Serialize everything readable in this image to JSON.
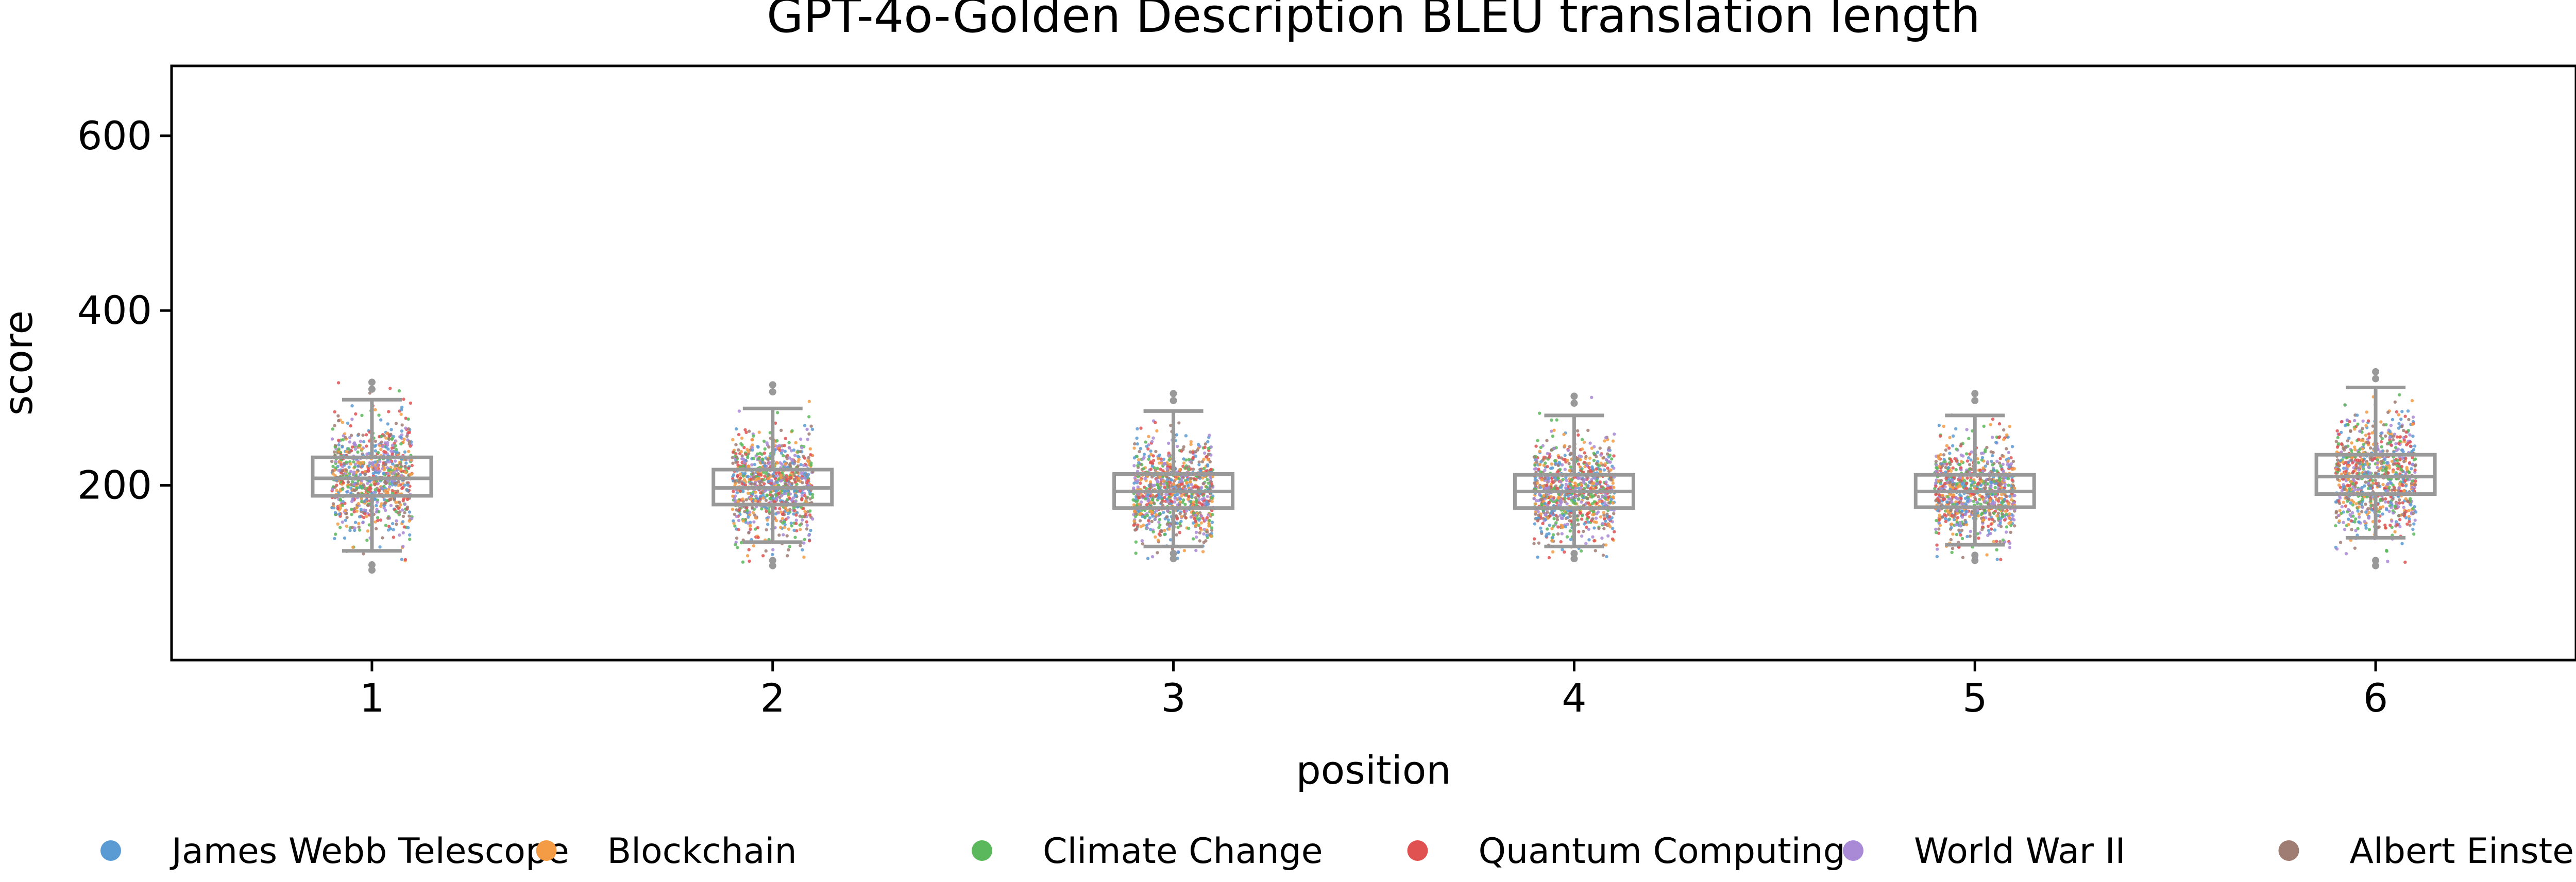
{
  "chart_data": {
    "type": "box+strip",
    "title": "GPT-4o-Golden Description BLEU translation length",
    "xlabel": "position",
    "ylabel": "score",
    "categories": [
      "1",
      "2",
      "3",
      "4",
      "5",
      "6"
    ],
    "ylim": [
      0,
      680
    ],
    "yticks": [
      200,
      400,
      600
    ],
    "grid": false,
    "legend_placement": "bottom",
    "box_color": "#999999",
    "boxes": [
      {
        "category": "1",
        "whisker_low": 125,
        "q1": 188,
        "median": 208,
        "q3": 232,
        "whisker_high": 298,
        "min": 103,
        "max": 318
      },
      {
        "category": "2",
        "whisker_low": 135,
        "q1": 178,
        "median": 197,
        "q3": 218,
        "whisker_high": 288,
        "min": 108,
        "max": 315
      },
      {
        "category": "3",
        "whisker_low": 130,
        "q1": 174,
        "median": 193,
        "q3": 213,
        "whisker_high": 285,
        "min": 116,
        "max": 305
      },
      {
        "category": "4",
        "whisker_low": 130,
        "q1": 174,
        "median": 193,
        "q3": 212,
        "whisker_high": 280,
        "min": 116,
        "max": 302
      },
      {
        "category": "5",
        "whisker_low": 132,
        "q1": 175,
        "median": 193,
        "q3": 212,
        "whisker_high": 280,
        "min": 114,
        "max": 305
      },
      {
        "category": "6",
        "whisker_low": 140,
        "q1": 190,
        "median": 210,
        "q3": 235,
        "whisker_high": 312,
        "min": 108,
        "max": 330
      }
    ],
    "series": [
      {
        "name": "James Webb Telescope",
        "color": "#5a9bd4"
      },
      {
        "name": "Blockchain",
        "color": "#f39c45"
      },
      {
        "name": "Climate Change",
        "color": "#5cb85c"
      },
      {
        "name": "Quantum Computing",
        "color": "#e05252"
      },
      {
        "name": "World War II",
        "color": "#a98ad6"
      },
      {
        "name": "Albert Einstein",
        "color": "#a07d73"
      }
    ]
  }
}
